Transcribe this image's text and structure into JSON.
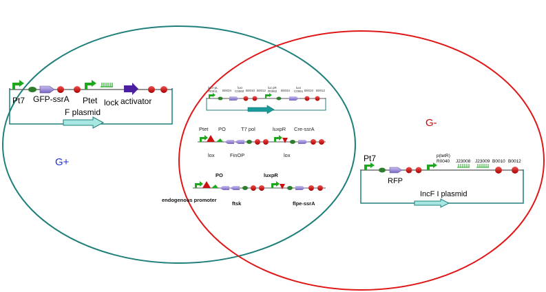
{
  "venn": {
    "left_label": "G+",
    "left_label_color": "#1f2fd0",
    "left_ellipse_color": "#1f7f7a",
    "right_label": "G-",
    "right_label_color": "#d40000",
    "right_ellipse_color": "#e01515"
  },
  "f_plasmid": {
    "labels": {
      "pt7": "Pt7",
      "gfp": "GFP-ssrA",
      "ptet": "Ptet",
      "lock": "lock",
      "activator": "activator"
    },
    "title": "F plasmid"
  },
  "incf_plasmid": {
    "labels": {
      "pt7": "Pt7",
      "ptetr": "p(tetR)",
      "r0040": "R0040",
      "j23008": "J23008",
      "j23009": "J23009",
      "b0010": "B0010",
      "b0012": "B0012",
      "rfp": "RFP"
    },
    "title": "IncF I plasmid"
  },
  "center_top": {
    "small_labels": [
      "lacI+pL",
      "R0011",
      "B0034",
      "luxI",
      "C0060",
      "B0010",
      "B0012",
      "lux pR",
      "R0062",
      "B0034",
      "luxI",
      "C0061",
      "B0010",
      "B0012"
    ]
  },
  "row2": {
    "top_labels": {
      "ptet": "Ptet",
      "po": "PO",
      "t7pol": "T7 pol",
      "luxpr": "luxpR",
      "cre": "Cre-ssrA"
    },
    "bottom_labels": {
      "lox1": "lox",
      "finop": "FinOP",
      "lox2": "lox"
    }
  },
  "row3": {
    "top_labels": {
      "po": "PO",
      "luxpr": "luxpR"
    },
    "bottom_labels": {
      "endogenous": "endogenous promoter",
      "ftsk": "ftsk",
      "flpe": "flpe-ssrA"
    }
  },
  "colors": {
    "promoter": "#1ea81e",
    "rbs": "#2e7d2e",
    "cds": "#9a86d8",
    "terminator": "#cc1111",
    "activator": "#4b1fa0",
    "backbone": "#1f7f7a",
    "arrow_fill": "#a8e6e2"
  }
}
